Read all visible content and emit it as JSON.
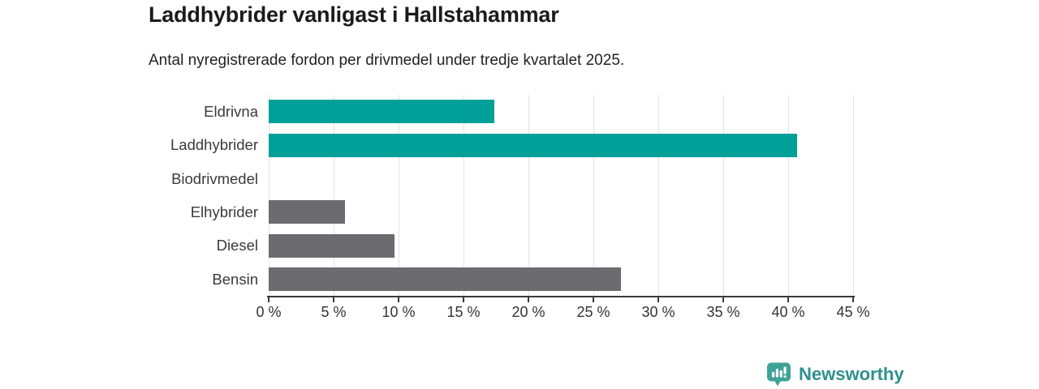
{
  "header": {
    "title": "Laddhybrider vanligast i Hallstahammar",
    "subtitle": "Antal nyregistrerade fordon per drivmedel under tredje kvartalet 2025."
  },
  "chart_data": {
    "type": "bar",
    "orientation": "horizontal",
    "title": "Laddhybrider vanligast i Hallstahammar",
    "subtitle": "Antal nyregistrerade fordon per drivmedel under tredje kvartalet 2025.",
    "categories": [
      "Eldrivna",
      "Laddhybrider",
      "Biodrivmedel",
      "Elhybrider",
      "Diesel",
      "Bensin"
    ],
    "values": [
      17.4,
      40.7,
      0,
      5.9,
      9.7,
      27.1
    ],
    "bar_colors": [
      "#00a099",
      "#00a099",
      "#6b6b70",
      "#6b6b70",
      "#6b6b70",
      "#6b6b70"
    ],
    "xlim": [
      0,
      45
    ],
    "x_ticks": [
      0,
      5,
      10,
      15,
      20,
      25,
      30,
      35,
      40,
      45
    ],
    "x_tick_labels": [
      "0 %",
      "5 %",
      "10 %",
      "15 %",
      "20 %",
      "25 %",
      "30 %",
      "35 %",
      "40 %",
      "45 %"
    ],
    "grid": true,
    "legend": "none"
  },
  "colors": {
    "highlight_teal": "#00a099",
    "neutral_gray": "#6b6b70",
    "gridline": "#e2e2e2",
    "axis": "#3a3a3a",
    "tick_text": "#333333"
  },
  "branding": {
    "logo_text": "Newsworthy",
    "logo_icon": "bar-chart-speech-bubble-icon",
    "icon_color": "#3fa296",
    "text_color": "#2d918d"
  }
}
